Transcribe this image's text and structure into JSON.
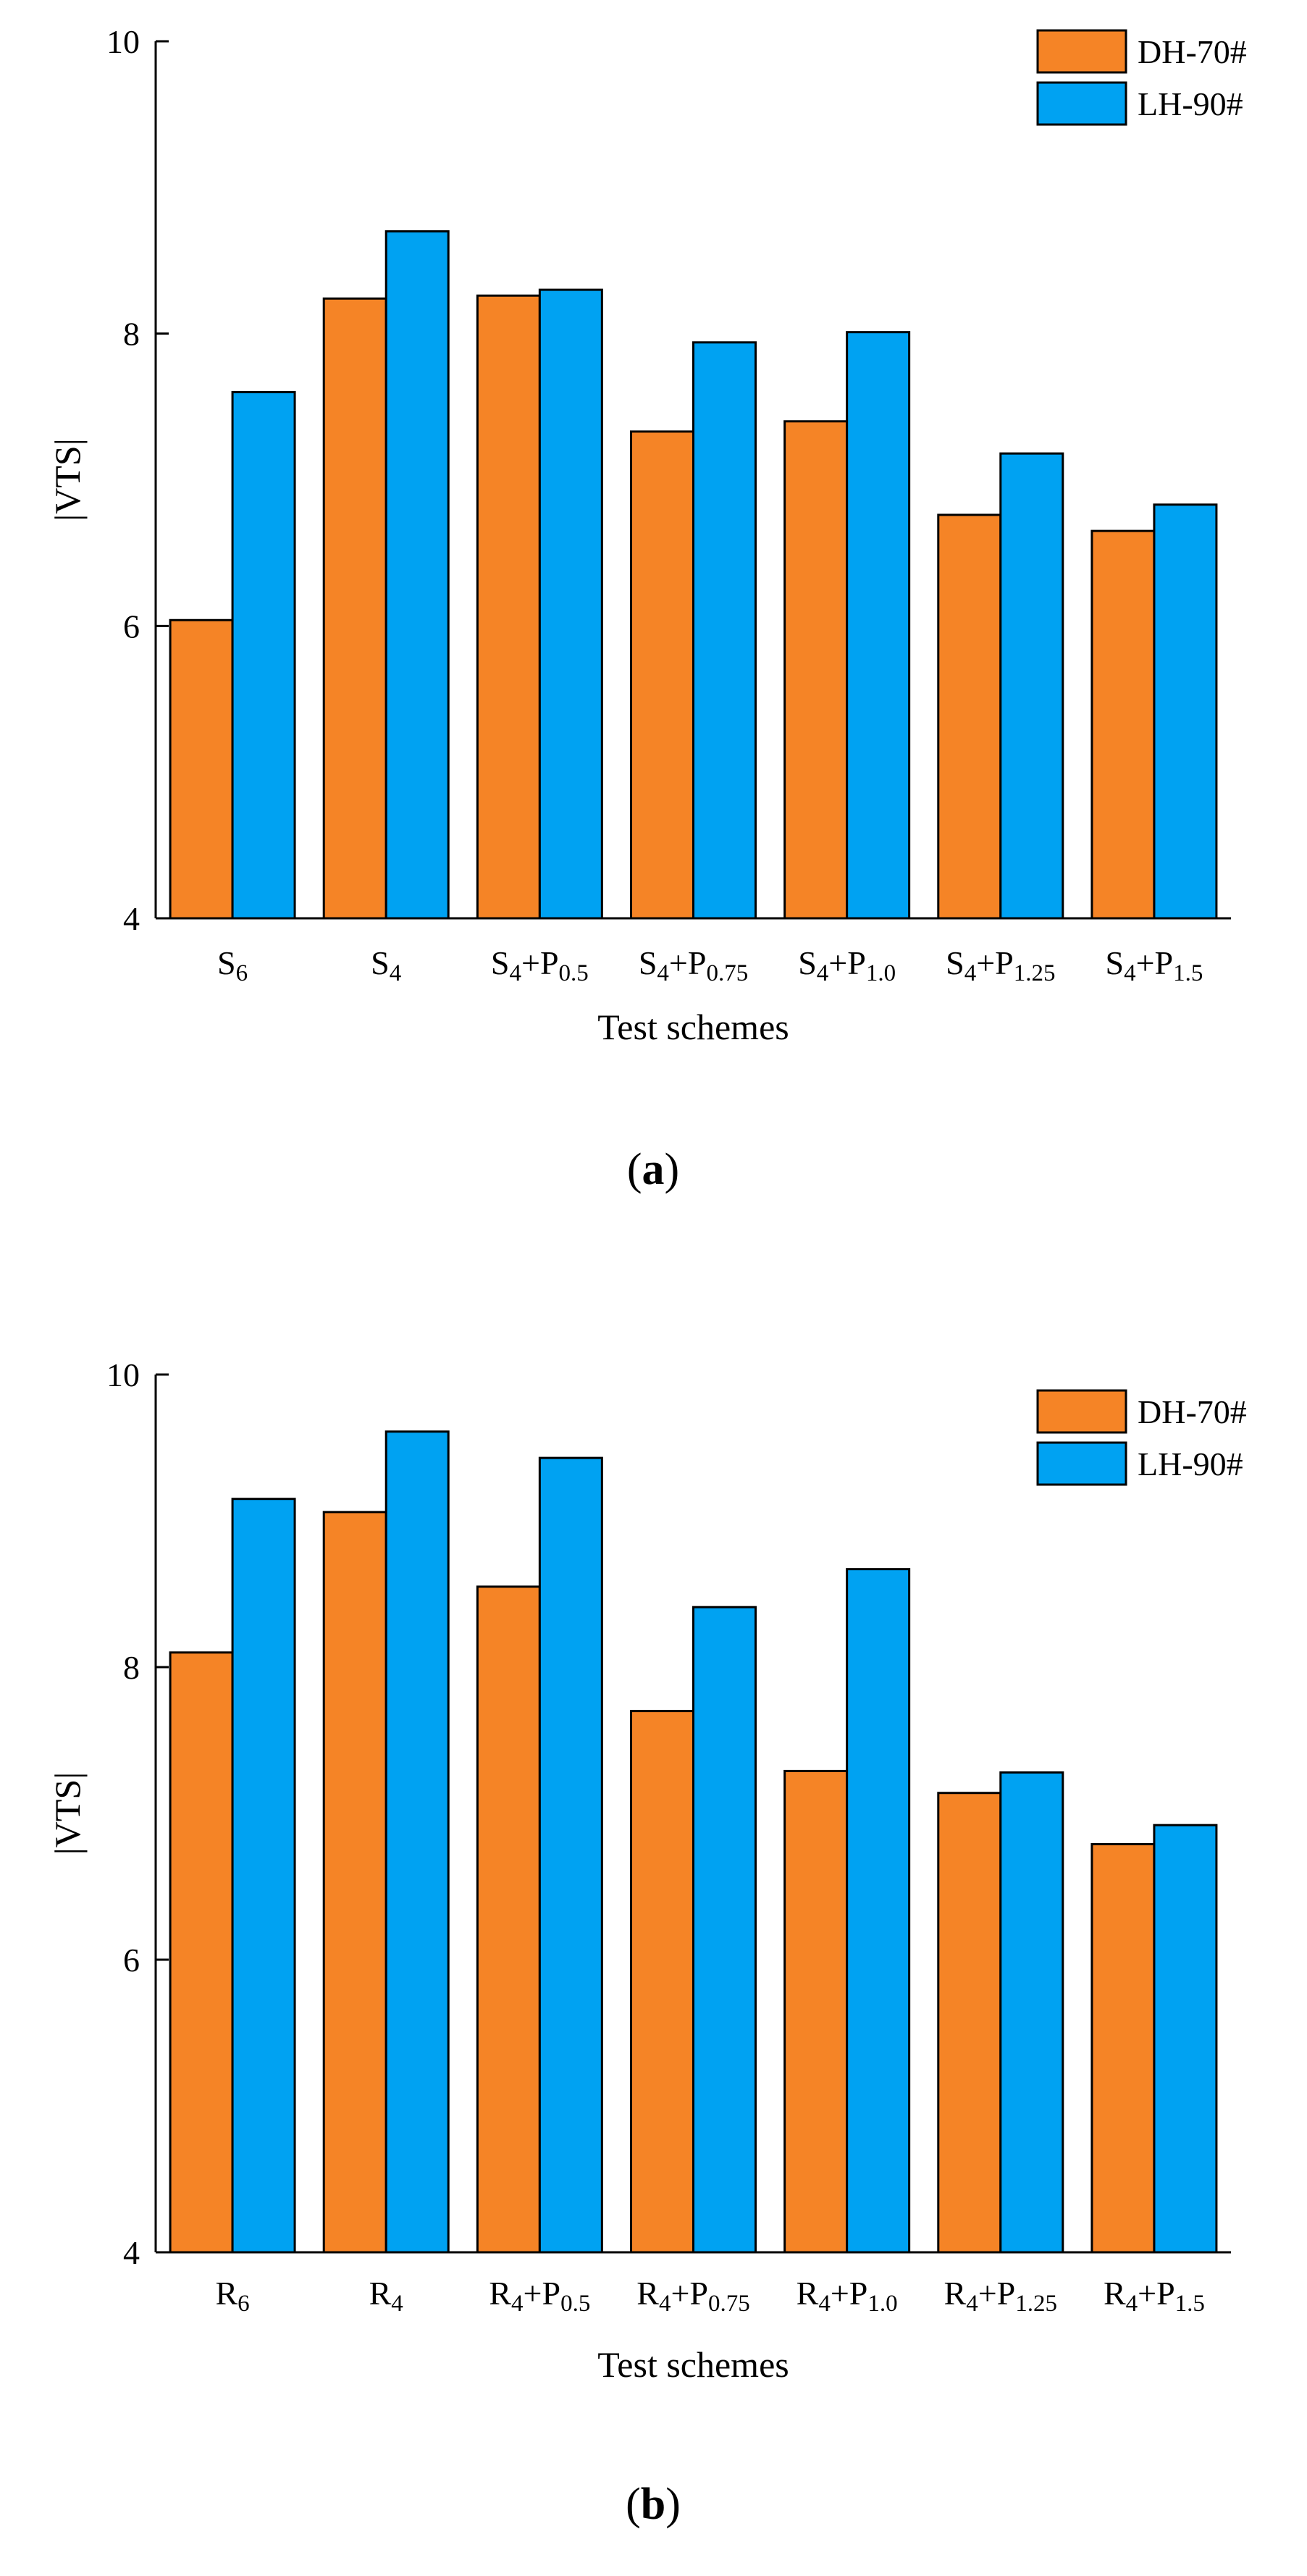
{
  "colors": {
    "DH-70#": "#F58426",
    "LH-90#": "#00A2F2"
  },
  "chart_data": [
    {
      "type": "bar",
      "panel": "a",
      "panel_open": "(",
      "panel_close": ")",
      "xlabel": "Test schemes",
      "ylabel": "|VTS|",
      "ylim": [
        4,
        10
      ],
      "yticks": [
        4,
        6,
        8,
        10
      ],
      "legend_position": "top-right",
      "categories": [
        {
          "base": "S",
          "sub": "6"
        },
        {
          "base": "S",
          "sub": "4"
        },
        {
          "base": "S",
          "sub": "4",
          "plus": "+P",
          "sub2": "0.5"
        },
        {
          "base": "S",
          "sub": "4",
          "plus": "+P",
          "sub2": "0.75"
        },
        {
          "base": "S",
          "sub": "4",
          "plus": "+P",
          "sub2": "1.0"
        },
        {
          "base": "S",
          "sub": "4",
          "plus": "+P",
          "sub2": "1.25"
        },
        {
          "base": "S",
          "sub": "4",
          "plus": "+P",
          "sub2": "1.5"
        }
      ],
      "series": [
        {
          "name": "DH-70#",
          "values": [
            6.04,
            8.24,
            8.26,
            7.33,
            7.4,
            6.76,
            6.65
          ]
        },
        {
          "name": "LH-90#",
          "values": [
            7.6,
            8.7,
            8.3,
            7.94,
            8.01,
            7.18,
            6.83
          ]
        }
      ]
    },
    {
      "type": "bar",
      "panel": "b",
      "panel_open": "(",
      "panel_close": ")",
      "xlabel": "Test schemes",
      "ylabel": "|VTS|",
      "ylim": [
        4,
        10
      ],
      "yticks": [
        4,
        6,
        8,
        10
      ],
      "legend_position": "top-right",
      "categories": [
        {
          "base": "R",
          "sub": "6"
        },
        {
          "base": "R",
          "sub": "4"
        },
        {
          "base": "R",
          "sub": "4",
          "plus": "+P",
          "sub2": "0.5"
        },
        {
          "base": "R",
          "sub": "4",
          "plus": "+P",
          "sub2": "0.75"
        },
        {
          "base": "R",
          "sub": "4",
          "plus": "+P",
          "sub2": "1.0"
        },
        {
          "base": "R",
          "sub": "4",
          "plus": "+P",
          "sub2": "1.25"
        },
        {
          "base": "R",
          "sub": "4",
          "plus": "+P",
          "sub2": "1.5"
        }
      ],
      "series": [
        {
          "name": "DH-70#",
          "values": [
            8.1,
            9.06,
            8.55,
            7.7,
            7.29,
            7.14,
            6.79
          ]
        },
        {
          "name": "LH-90#",
          "values": [
            9.15,
            9.61,
            9.43,
            8.41,
            8.67,
            7.28,
            6.92
          ]
        }
      ]
    }
  ]
}
